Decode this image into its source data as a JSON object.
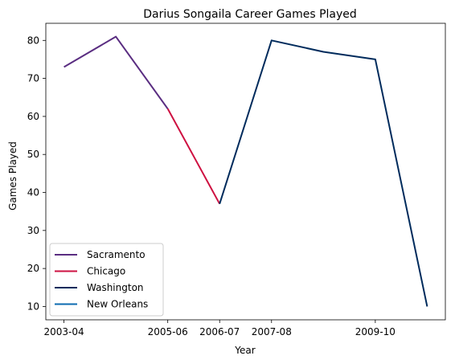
{
  "chart_data": {
    "type": "line",
    "title": "Darius Songaila Career Games Played",
    "xlabel": "Year",
    "ylabel": "Games Played",
    "x": [
      "2003-04",
      "2004-05",
      "2005-06",
      "2006-07",
      "2007-08",
      "2008-09",
      "2009-10",
      "2010-11"
    ],
    "x_ticks": [
      "2003-04",
      "2005-06",
      "2006-07",
      "2007-08",
      "2009-10"
    ],
    "ylim": [
      6.5,
      84.5
    ],
    "y_ticks": [
      10,
      20,
      30,
      40,
      50,
      60,
      70,
      80
    ],
    "grid": false,
    "legend_position": "lower-left",
    "series": [
      {
        "name": "Sacramento",
        "color": "#5a2d81",
        "points": [
          [
            "2003-04",
            73
          ],
          [
            "2004-05",
            81
          ],
          [
            "2005-06",
            62
          ]
        ]
      },
      {
        "name": "Chicago",
        "color": "#ce1141",
        "points": [
          [
            "2005-06",
            62
          ],
          [
            "2006-07",
            37
          ]
        ]
      },
      {
        "name": "Washington",
        "color": "#002b5c",
        "points": [
          [
            "2006-07",
            37
          ],
          [
            "2007-08",
            80
          ],
          [
            "2008-09",
            77
          ],
          [
            "2009-10",
            75
          ],
          [
            "2010-11",
            10
          ]
        ]
      },
      {
        "name": "New Orleans",
        "color": "#0c6bb0",
        "points": []
      }
    ]
  }
}
